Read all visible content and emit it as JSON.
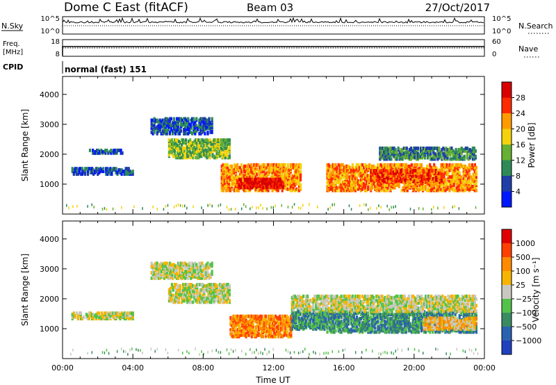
{
  "header": {
    "title": "Dome C East (fitACF)",
    "beam": "Beam 03",
    "date": "27/Oct/2017"
  },
  "strips": {
    "nsky_label": "N.Sky",
    "nsky_ticks": [
      "10^5",
      "10^0"
    ],
    "nsearch_label": "N.Search",
    "nsearch_ticks": [
      "10^5",
      "10^0"
    ],
    "freq_label_1": "Freq.",
    "freq_label_2": "[MHz]",
    "freq_ticks": [
      "18",
      "8"
    ],
    "nave_label": "Nave",
    "nave_ticks": [
      "60",
      "0"
    ],
    "cpid_label": "CPID",
    "cpid_value": "normal (fast) 151"
  },
  "chart_data": [
    {
      "type": "heatmap",
      "name": "power",
      "ylabel": "Slant Range [km]",
      "ylim": [
        0,
        4600
      ],
      "yticks": [
        "1000",
        "2000",
        "3000",
        "4000"
      ],
      "xlim": [
        0,
        24
      ],
      "colorbar": {
        "label": "Power [dB]",
        "ticks": [
          "4",
          "8",
          "12",
          "16",
          "20",
          "24",
          "28"
        ],
        "colors": [
          "#0018ff",
          "#1f3ea8",
          "#2e8b57",
          "#66b032",
          "#f4d20c",
          "#ff9a00",
          "#ff2a00",
          "#d90000"
        ]
      },
      "echo_regions": [
        {
          "t0": 0.5,
          "t1": 4.0,
          "r0": 1350,
          "r1": 1550,
          "level": 1
        },
        {
          "t0": 1.5,
          "t1": 3.5,
          "r0": 2050,
          "r1": 2150,
          "level": 1
        },
        {
          "t0": 5.0,
          "t1": 8.5,
          "r0": 2700,
          "r1": 3200,
          "level": 1
        },
        {
          "t0": 6.0,
          "t1": 9.5,
          "r0": 1900,
          "r1": 2500,
          "level": 3
        },
        {
          "t0": 9.0,
          "t1": 13.5,
          "r0": 800,
          "r1": 1700,
          "level": 5
        },
        {
          "t0": 10.0,
          "t1": 12.5,
          "r0": 900,
          "r1": 1200,
          "level": 7
        },
        {
          "t0": 15.0,
          "t1": 23.5,
          "r0": 800,
          "r1": 1700,
          "level": 5
        },
        {
          "t0": 17.5,
          "t1": 21.5,
          "r0": 1100,
          "r1": 1500,
          "level": 6
        },
        {
          "t0": 18.0,
          "t1": 23.5,
          "r0": 1850,
          "r1": 2250,
          "level": 2
        }
      ]
    },
    {
      "type": "heatmap",
      "name": "velocity",
      "ylabel": "Slant Range [km]",
      "xlabel": "Time UT",
      "ylim": [
        0,
        4600
      ],
      "yticks": [
        "1000",
        "2000",
        "3000",
        "4000"
      ],
      "xlim": [
        0,
        24
      ],
      "xticks": [
        "00:00",
        "04:00",
        "08:00",
        "12:00",
        "16:00",
        "20:00",
        "00:00"
      ],
      "colorbar": {
        "label": "Velocity [m s⁻¹]",
        "ticks": [
          "1000",
          "500",
          "100",
          "25",
          "−25",
          "−100",
          "−500",
          "−1000"
        ],
        "colors": [
          "#2040c0",
          "#2a62b0",
          "#3a8b63",
          "#54c24a",
          "#c8c8c0",
          "#f5b400",
          "#ff8a00",
          "#ff4000",
          "#e00000"
        ]
      },
      "echo_regions": [
        {
          "t0": 0.5,
          "t1": 4.0,
          "r0": 1350,
          "r1": 1550,
          "level": 4
        },
        {
          "t0": 5.0,
          "t1": 8.5,
          "r0": 2700,
          "r1": 3200,
          "level": 4
        },
        {
          "t0": 6.0,
          "t1": 9.5,
          "r0": 1900,
          "r1": 2500,
          "level": 4
        },
        {
          "t0": 9.5,
          "t1": 13.0,
          "r0": 750,
          "r1": 1450,
          "level": 6
        },
        {
          "t0": 13.0,
          "t1": 15.0,
          "r0": 1000,
          "r1": 1600,
          "level": 2
        },
        {
          "t0": 15.0,
          "t1": 23.5,
          "r0": 900,
          "r1": 1600,
          "level": 2
        },
        {
          "t0": 20.5,
          "t1": 23.5,
          "r0": 1000,
          "r1": 1400,
          "level": 5
        },
        {
          "t0": 13.0,
          "t1": 23.5,
          "r0": 1600,
          "r1": 2100,
          "level": 4
        }
      ]
    }
  ]
}
